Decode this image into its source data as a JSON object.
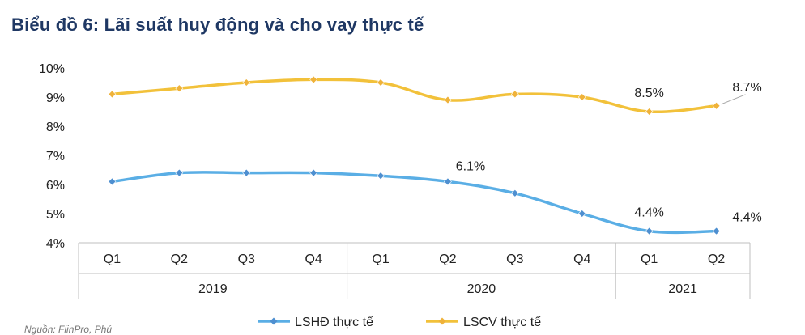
{
  "title": "Biểu đồ 6: Lãi suất huy động và cho vay thực tế",
  "source_note": "Nguồn: FiinPro, Phú",
  "chart_data": {
    "type": "line",
    "title": "Biểu đồ 6: Lãi suất huy động và cho vay thực tế",
    "categories": [
      "Q1",
      "Q2",
      "Q3",
      "Q4",
      "Q1",
      "Q2",
      "Q3",
      "Q4",
      "Q1",
      "Q2"
    ],
    "year_groups": [
      {
        "label": "2019",
        "count": 4
      },
      {
        "label": "2020",
        "count": 4
      },
      {
        "label": "2021",
        "count": 2
      }
    ],
    "ylim": [
      4,
      10
    ],
    "yticks": [
      {
        "value": 4,
        "label": "4%"
      },
      {
        "value": 5,
        "label": "5%"
      },
      {
        "value": 6,
        "label": "6%"
      },
      {
        "value": 7,
        "label": "7%"
      },
      {
        "value": 8,
        "label": "8%"
      },
      {
        "value": 9,
        "label": "9%"
      },
      {
        "value": 10,
        "label": "10%"
      }
    ],
    "series": [
      {
        "name": "LSHĐ thực tế",
        "color": "#5aaee5",
        "marker_color": "#4e8fd0",
        "values": [
          6.1,
          6.4,
          6.4,
          6.4,
          6.3,
          6.1,
          5.7,
          5.0,
          4.4,
          4.4
        ],
        "labels": [
          {
            "index": 5,
            "text": "6.1%"
          },
          {
            "index": 8,
            "text": "4.4%"
          },
          {
            "index": 9,
            "text": "4.4%"
          }
        ]
      },
      {
        "name": "LSCV thực tế",
        "color": "#f2c13a",
        "marker_color": "#efb23a",
        "values": [
          9.1,
          9.3,
          9.5,
          9.6,
          9.5,
          8.9,
          9.1,
          9.0,
          8.5,
          8.7
        ],
        "labels": [
          {
            "index": 8,
            "text": "8.5%"
          },
          {
            "index": 9,
            "text": "8.7%"
          }
        ]
      }
    ],
    "legend": "bottom-center",
    "grid": false
  }
}
